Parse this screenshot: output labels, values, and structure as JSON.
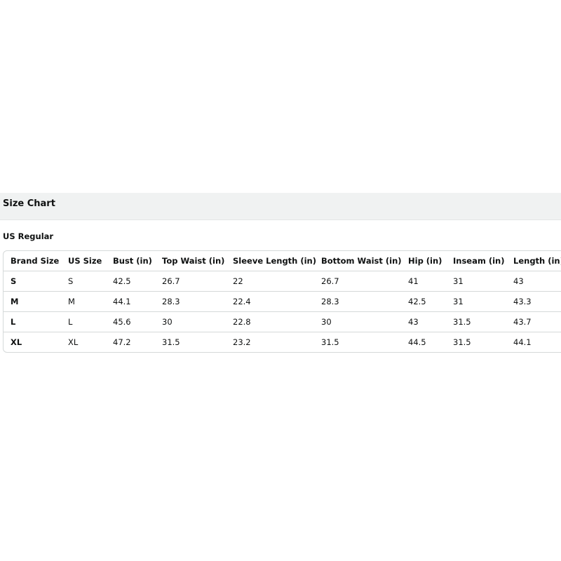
{
  "header": {
    "title": "Size Chart"
  },
  "section": {
    "title": "US Regular"
  },
  "table": {
    "columns": [
      "Brand Size",
      "US Size",
      "Bust (in)",
      "Top Waist (in)",
      "Sleeve Length (in)",
      "Bottom Waist (in)",
      "Hip (in)",
      "Inseam (in)",
      "Length (in)"
    ],
    "rows": [
      [
        "S",
        "S",
        "42.5",
        "26.7",
        "22",
        "26.7",
        "41",
        "31",
        "43"
      ],
      [
        "M",
        "M",
        "44.1",
        "28.3",
        "22.4",
        "28.3",
        "42.5",
        "31",
        "43.3"
      ],
      [
        "L",
        "L",
        "45.6",
        "30",
        "22.8",
        "30",
        "43",
        "31.5",
        "43.7"
      ],
      [
        "XL",
        "XL",
        "47.2",
        "31.5",
        "23.2",
        "31.5",
        "44.5",
        "31.5",
        "44.1"
      ]
    ]
  }
}
